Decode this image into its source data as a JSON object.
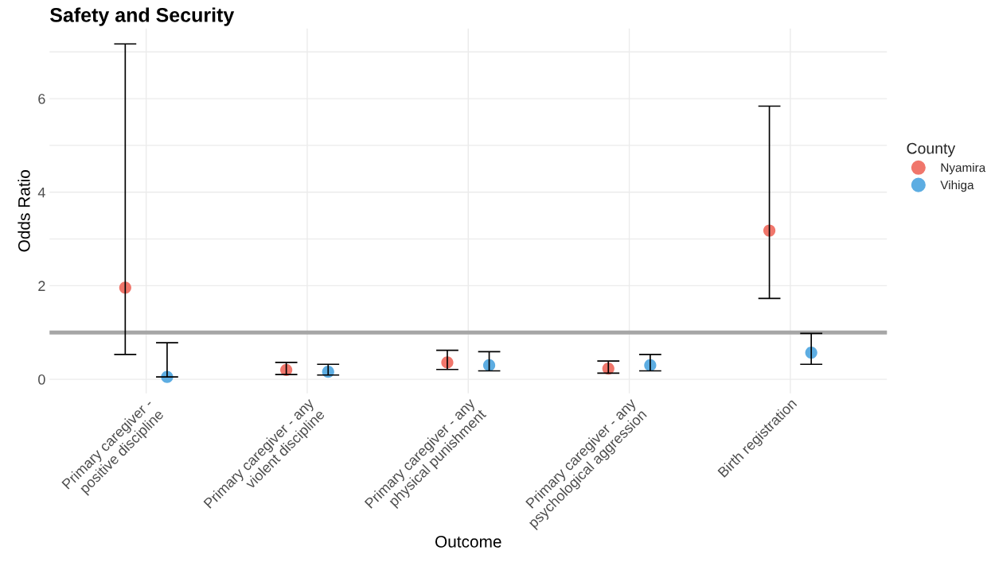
{
  "chart_data": {
    "type": "scatter",
    "title": "Safety and Security",
    "xlabel": "Outcome",
    "ylabel": "Odds Ratio",
    "legend_title": "County",
    "categories": [
      "Primary caregiver -\npositive discipline",
      "Primary caregiver - any\nviolent discipline",
      "Primary caregiver - any\nphysical punishment",
      "Primary caregiver - any\npsychological aggression",
      "Birth registration"
    ],
    "series": [
      {
        "name": "Nyamira",
        "color": "#f0766b",
        "values": [
          1.96,
          0.2,
          0.36,
          0.23,
          3.18
        ],
        "errors": [
          [
            0.53,
            7.17
          ],
          [
            0.1,
            0.36
          ],
          [
            0.21,
            0.62
          ],
          [
            0.13,
            0.39
          ],
          [
            1.73,
            5.84
          ]
        ]
      },
      {
        "name": "Vihiga",
        "color": "#5dade2",
        "values": [
          0.05,
          0.16,
          0.3,
          0.3,
          0.57
        ],
        "errors": [
          [
            0.05,
            0.78
          ],
          [
            0.09,
            0.32
          ],
          [
            0.18,
            0.59
          ],
          [
            0.18,
            0.53
          ],
          [
            0.32,
            0.98
          ]
        ]
      }
    ],
    "ylim": [
      -0.3,
      7.5
    ],
    "yticks": [
      0,
      {
        "value": 1,
        "label": null
      },
      2,
      {
        "value": 3,
        "label": null
      },
      4,
      {
        "value": 5,
        "label": null
      },
      6,
      {
        "value": 7,
        "label": null
      }
    ],
    "ref_lines": [
      {
        "axis": "y",
        "value": 1,
        "color": "#a6a6a6"
      }
    ],
    "grid": true,
    "legend": "right",
    "marker": "circle"
  }
}
